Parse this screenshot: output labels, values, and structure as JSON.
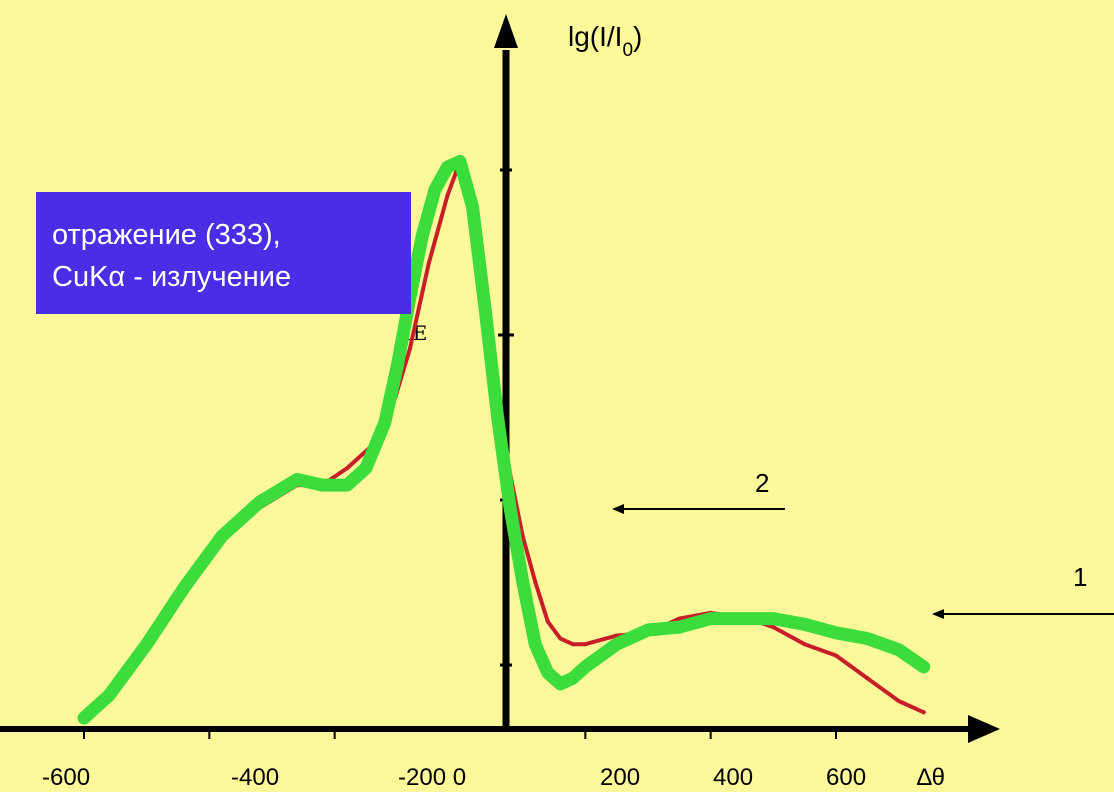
{
  "annotation_box": {
    "line1": "отражение (333),",
    "line2": "CuKα - излучение",
    "color": "#4a2ee6"
  },
  "chart_data": {
    "type": "line",
    "title": "",
    "ylabel_main": "lg(I/I",
    "ylabel_sub": "0",
    "ylabel_close": ")",
    "xlabel": "∆θ",
    "y_axis_tick_text": "1E",
    "x_tick_labels": [
      "-600",
      "-400",
      "-200 0",
      "200",
      "400",
      "600"
    ],
    "x_ticks": [
      -600,
      -400,
      -200,
      200,
      400,
      600
    ],
    "xlim": [
      -600,
      750
    ],
    "ylim": [
      0,
      1
    ],
    "background": "#fdf99b",
    "series": [
      {
        "label": "2",
        "color": "#c81e2a",
        "x": [
          -600,
          -560,
          -500,
          -440,
          -380,
          -320,
          -260,
          -220,
          -180,
          -140,
          -110,
          -80,
          -50,
          -20,
          0,
          10,
          20,
          40,
          60,
          80,
          100,
          120,
          140,
          160,
          180,
          200,
          250,
          300,
          350,
          400,
          430,
          460,
          500,
          550,
          600,
          650,
          700,
          740
        ],
        "y": [
          0.0,
          0.04,
          0.13,
          0.23,
          0.32,
          0.37,
          0.41,
          0.41,
          0.44,
          0.48,
          0.54,
          0.65,
          0.8,
          0.92,
          0.98,
          0.92,
          0.86,
          0.72,
          0.57,
          0.43,
          0.32,
          0.24,
          0.17,
          0.14,
          0.13,
          0.13,
          0.145,
          0.15,
          0.175,
          0.185,
          0.18,
          0.175,
          0.16,
          0.13,
          0.11,
          0.07,
          0.03,
          0.01
        ]
      },
      {
        "label": "1",
        "color": "#3ddc3d",
        "x": [
          -600,
          -560,
          -500,
          -440,
          -380,
          -320,
          -260,
          -220,
          -180,
          -150,
          -120,
          -100,
          -80,
          -60,
          -40,
          -20,
          0,
          20,
          40,
          60,
          80,
          100,
          120,
          140,
          160,
          180,
          200,
          250,
          300,
          350,
          400,
          450,
          500,
          550,
          600,
          650,
          700,
          740
        ],
        "y": [
          0.0,
          0.04,
          0.13,
          0.23,
          0.32,
          0.38,
          0.42,
          0.41,
          0.41,
          0.44,
          0.52,
          0.62,
          0.74,
          0.85,
          0.93,
          0.97,
          0.98,
          0.9,
          0.72,
          0.53,
          0.37,
          0.24,
          0.13,
          0.08,
          0.06,
          0.07,
          0.09,
          0.13,
          0.155,
          0.16,
          0.175,
          0.175,
          0.175,
          0.165,
          0.15,
          0.14,
          0.12,
          0.09
        ]
      }
    ]
  }
}
